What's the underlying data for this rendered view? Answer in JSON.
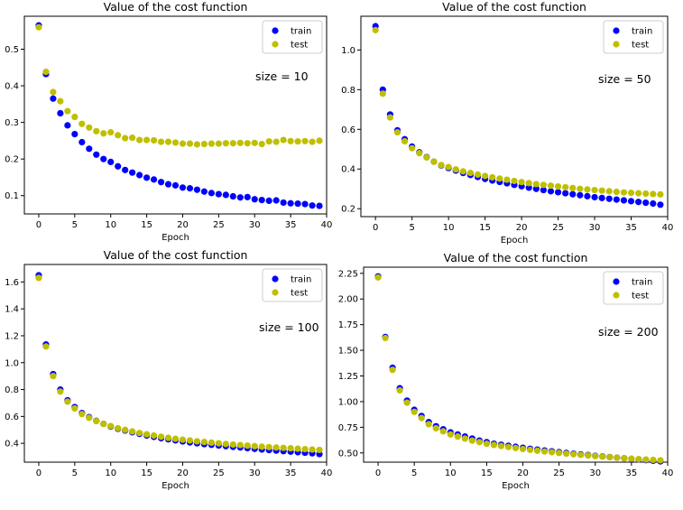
{
  "figure": {
    "colors": {
      "train": "#0000ff",
      "test": "#bfbf00"
    }
  },
  "chart_data": [
    {
      "type": "scatter",
      "title": "Value of the cost function",
      "xlabel": "Epoch",
      "ylabel": "",
      "annotation": "size = 10",
      "xlim": [
        -2,
        40
      ],
      "ylim": [
        0.05,
        0.59
      ],
      "xticks": [
        0,
        5,
        10,
        15,
        20,
        25,
        30,
        35,
        40
      ],
      "xtick_labels": [
        "0",
        "5",
        "10",
        "15",
        "20",
        "25",
        "30",
        "35",
        "40"
      ],
      "yticks": [
        0.1,
        0.2,
        0.3,
        0.4,
        0.5
      ],
      "ytick_labels": [
        "0.1",
        "0.2",
        "0.3",
        "0.4",
        "0.5"
      ],
      "legend": "top-right",
      "grid": false,
      "x": [
        0,
        1,
        2,
        3,
        4,
        5,
        6,
        7,
        8,
        9,
        10,
        11,
        12,
        13,
        14,
        15,
        16,
        17,
        18,
        19,
        20,
        21,
        22,
        23,
        24,
        25,
        26,
        27,
        28,
        29,
        30,
        31,
        32,
        33,
        34,
        35,
        36,
        37,
        38,
        39
      ],
      "series": [
        {
          "name": "train",
          "color": "#0000ff",
          "values": [
            0.565,
            0.432,
            0.365,
            0.325,
            0.292,
            0.268,
            0.246,
            0.228,
            0.212,
            0.2,
            0.192,
            0.18,
            0.17,
            0.163,
            0.156,
            0.149,
            0.144,
            0.137,
            0.131,
            0.128,
            0.122,
            0.12,
            0.116,
            0.111,
            0.107,
            0.104,
            0.102,
            0.098,
            0.095,
            0.096,
            0.09,
            0.088,
            0.086,
            0.087,
            0.081,
            0.079,
            0.078,
            0.077,
            0.073,
            0.072
          ]
        },
        {
          "name": "test",
          "color": "#bfbf00",
          "values": [
            0.56,
            0.438,
            0.383,
            0.358,
            0.331,
            0.315,
            0.296,
            0.286,
            0.276,
            0.27,
            0.273,
            0.265,
            0.257,
            0.258,
            0.252,
            0.252,
            0.251,
            0.247,
            0.247,
            0.245,
            0.242,
            0.242,
            0.24,
            0.241,
            0.242,
            0.242,
            0.243,
            0.243,
            0.244,
            0.243,
            0.244,
            0.241,
            0.248,
            0.247,
            0.252,
            0.249,
            0.248,
            0.249,
            0.247,
            0.25
          ]
        }
      ]
    },
    {
      "type": "scatter",
      "title": "Value of the cost function",
      "xlabel": "Epoch",
      "ylabel": "",
      "annotation": "size = 50",
      "xlim": [
        -2,
        40
      ],
      "ylim": [
        0.16,
        1.17
      ],
      "xticks": [
        0,
        5,
        10,
        15,
        20,
        25,
        30,
        35,
        40
      ],
      "xtick_labels": [
        "0",
        "5",
        "10",
        "15",
        "20",
        "25",
        "30",
        "35",
        "40"
      ],
      "yticks": [
        0.2,
        0.4,
        0.6,
        0.8,
        1.0
      ],
      "ytick_labels": [
        "0.2",
        "0.4",
        "0.6",
        "0.8",
        "1.0"
      ],
      "legend": "top-right",
      "grid": false,
      "x": [
        0,
        1,
        2,
        3,
        4,
        5,
        6,
        7,
        8,
        9,
        10,
        11,
        12,
        13,
        14,
        15,
        16,
        17,
        18,
        19,
        20,
        21,
        22,
        23,
        24,
        25,
        26,
        27,
        28,
        29,
        30,
        31,
        32,
        33,
        34,
        35,
        36,
        37,
        38,
        39
      ],
      "series": [
        {
          "name": "train",
          "color": "#0000ff",
          "values": [
            1.12,
            0.8,
            0.675,
            0.595,
            0.55,
            0.513,
            0.484,
            0.46,
            0.437,
            0.418,
            0.405,
            0.392,
            0.38,
            0.37,
            0.36,
            0.35,
            0.342,
            0.335,
            0.328,
            0.32,
            0.313,
            0.306,
            0.3,
            0.294,
            0.288,
            0.283,
            0.278,
            0.273,
            0.268,
            0.263,
            0.258,
            0.254,
            0.25,
            0.246,
            0.242,
            0.238,
            0.234,
            0.23,
            0.226,
            0.22
          ]
        },
        {
          "name": "test",
          "color": "#bfbf00",
          "values": [
            1.1,
            0.78,
            0.66,
            0.585,
            0.54,
            0.505,
            0.48,
            0.458,
            0.437,
            0.42,
            0.41,
            0.398,
            0.388,
            0.38,
            0.372,
            0.365,
            0.358,
            0.352,
            0.346,
            0.34,
            0.334,
            0.329,
            0.324,
            0.32,
            0.316,
            0.312,
            0.308,
            0.304,
            0.3,
            0.297,
            0.294,
            0.291,
            0.288,
            0.285,
            0.282,
            0.28,
            0.278,
            0.276,
            0.274,
            0.272
          ]
        }
      ]
    },
    {
      "type": "scatter",
      "title": "Value of the cost function",
      "xlabel": "Epoch",
      "ylabel": "",
      "annotation": "size = 100",
      "xlim": [
        -2,
        40
      ],
      "ylim": [
        0.26,
        1.73
      ],
      "xticks": [
        0,
        5,
        10,
        15,
        20,
        25,
        30,
        35,
        40
      ],
      "xtick_labels": [
        "0",
        "5",
        "10",
        "15",
        "20",
        "25",
        "30",
        "35",
        "40"
      ],
      "yticks": [
        0.4,
        0.6,
        0.8,
        1.0,
        1.2,
        1.4,
        1.6
      ],
      "ytick_labels": [
        "0.4",
        "0.6",
        "0.8",
        "1.0",
        "1.2",
        "1.4",
        "1.6"
      ],
      "legend": "top-right",
      "grid": false,
      "x": [
        0,
        1,
        2,
        3,
        4,
        5,
        6,
        7,
        8,
        9,
        10,
        11,
        12,
        13,
        14,
        15,
        16,
        17,
        18,
        19,
        20,
        21,
        22,
        23,
        24,
        25,
        26,
        27,
        28,
        29,
        30,
        31,
        32,
        33,
        34,
        35,
        36,
        37,
        38,
        39
      ],
      "series": [
        {
          "name": "train",
          "color": "#0000ff",
          "values": [
            1.65,
            1.135,
            0.915,
            0.8,
            0.72,
            0.67,
            0.625,
            0.595,
            0.567,
            0.545,
            0.525,
            0.508,
            0.495,
            0.482,
            0.47,
            0.458,
            0.448,
            0.438,
            0.43,
            0.422,
            0.414,
            0.407,
            0.4,
            0.394,
            0.389,
            0.384,
            0.379,
            0.374,
            0.369,
            0.364,
            0.359,
            0.354,
            0.35,
            0.346,
            0.342,
            0.338,
            0.334,
            0.33,
            0.326,
            0.32
          ]
        },
        {
          "name": "test",
          "color": "#bfbf00",
          "values": [
            1.63,
            1.12,
            0.9,
            0.785,
            0.71,
            0.66,
            0.618,
            0.59,
            0.565,
            0.545,
            0.528,
            0.512,
            0.5,
            0.488,
            0.477,
            0.467,
            0.458,
            0.449,
            0.441,
            0.434,
            0.427,
            0.421,
            0.415,
            0.41,
            0.405,
            0.4,
            0.395,
            0.391,
            0.387,
            0.383,
            0.379,
            0.375,
            0.372,
            0.369,
            0.366,
            0.363,
            0.36,
            0.357,
            0.354,
            0.351
          ]
        }
      ]
    },
    {
      "type": "scatter",
      "title": "Value of the cost function",
      "xlabel": "Epoch",
      "ylabel": "",
      "annotation": "size = 200",
      "xlim": [
        -2,
        40
      ],
      "ylim": [
        0.41,
        2.31
      ],
      "xticks": [
        0,
        5,
        10,
        15,
        20,
        25,
        30,
        35,
        40
      ],
      "xtick_labels": [
        "0",
        "5",
        "10",
        "15",
        "20",
        "25",
        "30",
        "35",
        "40"
      ],
      "yticks": [
        0.5,
        0.75,
        1.0,
        1.25,
        1.5,
        1.75,
        2.0,
        2.25
      ],
      "ytick_labels": [
        "0.50",
        "0.75",
        "1.00",
        "1.25",
        "1.50",
        "1.75",
        "2.00",
        "2.25"
      ],
      "legend": "top-right",
      "grid": false,
      "x": [
        0,
        1,
        2,
        3,
        4,
        5,
        6,
        7,
        8,
        9,
        10,
        11,
        12,
        13,
        14,
        15,
        16,
        17,
        18,
        19,
        20,
        21,
        22,
        23,
        24,
        25,
        26,
        27,
        28,
        29,
        30,
        31,
        32,
        33,
        34,
        35,
        36,
        37,
        38,
        39
      ],
      "series": [
        {
          "name": "train",
          "color": "#0000ff",
          "values": [
            2.22,
            1.63,
            1.33,
            1.13,
            1.01,
            0.92,
            0.86,
            0.8,
            0.76,
            0.73,
            0.7,
            0.68,
            0.66,
            0.64,
            0.62,
            0.605,
            0.59,
            0.58,
            0.57,
            0.56,
            0.55,
            0.54,
            0.532,
            0.524,
            0.516,
            0.508,
            0.5,
            0.493,
            0.486,
            0.479,
            0.472,
            0.466,
            0.46,
            0.454,
            0.448,
            0.442,
            0.436,
            0.43,
            0.424,
            0.418
          ]
        },
        {
          "name": "test",
          "color": "#bfbf00",
          "values": [
            2.21,
            1.62,
            1.31,
            1.11,
            0.99,
            0.9,
            0.84,
            0.78,
            0.74,
            0.71,
            0.68,
            0.66,
            0.64,
            0.62,
            0.605,
            0.59,
            0.578,
            0.568,
            0.558,
            0.548,
            0.538,
            0.53,
            0.522,
            0.514,
            0.507,
            0.5,
            0.493,
            0.487,
            0.481,
            0.475,
            0.469,
            0.464,
            0.459,
            0.454,
            0.449,
            0.444,
            0.44,
            0.436,
            0.432,
            0.428
          ]
        }
      ]
    }
  ]
}
